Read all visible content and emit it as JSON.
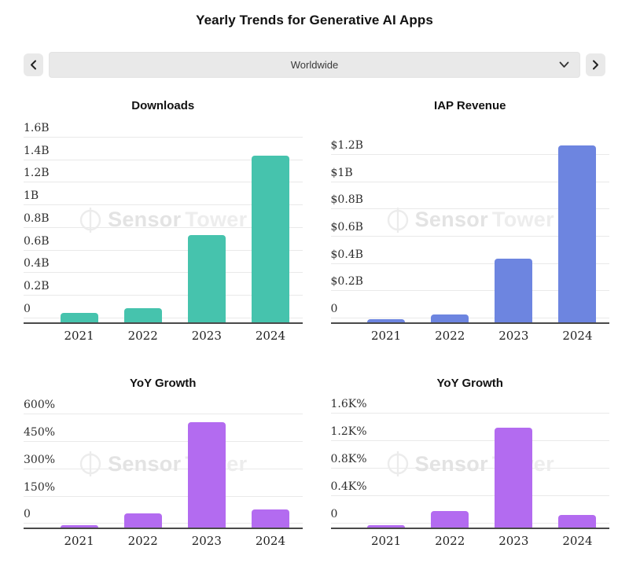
{
  "page": {
    "title": "Yearly Trends for Generative AI Apps"
  },
  "controls": {
    "selected_region": "Worldwide"
  },
  "watermark": {
    "brand_first": "Sensor",
    "brand_second": "Tower"
  },
  "colors": {
    "downloads_bar": "#46c3ad",
    "revenue_bar": "#6d85e0",
    "growth_bar": "#b36bf0",
    "gridline": "#e9e9e9",
    "axis": "#4a4a4a",
    "control_background": "#e9e9e9"
  },
  "chart_data": [
    {
      "type": "bar",
      "title": "Downloads",
      "categories": [
        "2021",
        "2022",
        "2023",
        "2024"
      ],
      "values": [
        0.05,
        0.09,
        0.74,
        1.44
      ],
      "unit": "billions of downloads",
      "ylim": [
        0,
        1.6
      ],
      "grid": true,
      "legend": false,
      "bar_color": "#46c3ad",
      "y_ticks": [
        {
          "value": 1.6,
          "label": "1.6B"
        },
        {
          "value": 1.4,
          "label": "1.4B"
        },
        {
          "value": 1.2,
          "label": "1.2B"
        },
        {
          "value": 1.0,
          "label": "1B"
        },
        {
          "value": 0.8,
          "label": "0.8B"
        },
        {
          "value": 0.6,
          "label": "0.6B"
        },
        {
          "value": 0.4,
          "label": "0.4B"
        },
        {
          "value": 0.2,
          "label": "0.2B"
        },
        {
          "value": 0,
          "label": "0"
        }
      ]
    },
    {
      "type": "bar",
      "title": "IAP Revenue",
      "categories": [
        "2021",
        "2022",
        "2023",
        "2024"
      ],
      "values": [
        0.01,
        0.03,
        0.44,
        1.27
      ],
      "unit": "billions USD",
      "ylim": [
        0,
        1.2
      ],
      "grid": true,
      "legend": false,
      "bar_color": "#6d85e0",
      "y_ticks": [
        {
          "value": 1.2,
          "label": "$1.2B"
        },
        {
          "value": 1.0,
          "label": "$1B"
        },
        {
          "value": 0.8,
          "label": "$0.8B"
        },
        {
          "value": 0.6,
          "label": "$0.6B"
        },
        {
          "value": 0.4,
          "label": "$0.4B"
        },
        {
          "value": 0.2,
          "label": "$0.2B"
        },
        {
          "value": 0,
          "label": "0"
        }
      ]
    },
    {
      "type": "bar",
      "title": "YoY Growth",
      "categories": [
        "2021",
        "2022",
        "2023",
        "2024"
      ],
      "values": [
        3,
        56,
        560,
        78
      ],
      "unit": "percent (downloads growth)",
      "ylim": [
        0,
        600
      ],
      "grid": true,
      "legend": false,
      "bar_color": "#b36bf0",
      "y_ticks": [
        {
          "value": 600,
          "label": "600%"
        },
        {
          "value": 450,
          "label": "450%"
        },
        {
          "value": 300,
          "label": "300%"
        },
        {
          "value": 150,
          "label": "150%"
        },
        {
          "value": 0,
          "label": "0"
        }
      ]
    },
    {
      "type": "bar",
      "title": "YoY Growth",
      "categories": [
        "2021",
        "2022",
        "2023",
        "2024"
      ],
      "values": [
        0.01,
        0.19,
        1.4,
        0.13
      ],
      "unit": "thousand percent (revenue growth)",
      "ylim": [
        0,
        1.6
      ],
      "grid": true,
      "legend": false,
      "bar_color": "#b36bf0",
      "y_ticks": [
        {
          "value": 1.6,
          "label": "1.6K%"
        },
        {
          "value": 1.2,
          "label": "1.2K%"
        },
        {
          "value": 0.8,
          "label": "0.8K%"
        },
        {
          "value": 0.4,
          "label": "0.4K%"
        },
        {
          "value": 0,
          "label": "0"
        }
      ]
    }
  ]
}
